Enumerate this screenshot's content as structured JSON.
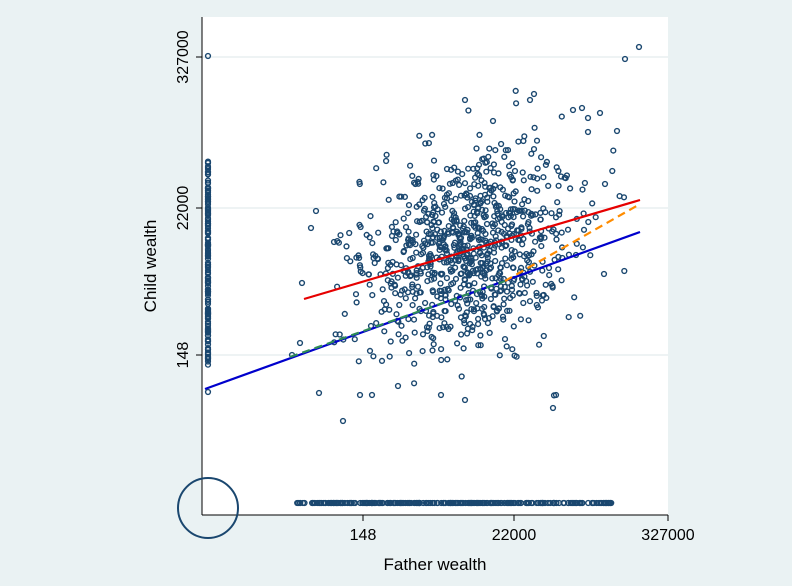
{
  "chart_data": {
    "type": "scatter",
    "title": "",
    "xlabel": "Father wealth",
    "ylabel": "Child wealth",
    "scale": "log-like (tick positions evenly spaced at 148, 22000, 327000)",
    "x_ticks": [
      148,
      22000,
      327000
    ],
    "y_ticks": [
      148,
      22000,
      327000
    ],
    "xlim": [
      0,
      327000
    ],
    "ylim": [
      0,
      327000
    ],
    "grid": "horizontal",
    "legend": "none",
    "marker": "hollow circle",
    "colors": {
      "page_background": "#eaf2f3",
      "plot_background": "#ffffff",
      "marker": "#1a476f",
      "grid": "#e4ecee",
      "fit_red": "#e60000",
      "fit_blue": "#0000cc",
      "fit_orange_dashed": "#ff8c00",
      "fit_green_dashed": "#2e8b57",
      "circle_annotation": "#1a476f"
    },
    "fit_lines": [
      {
        "style": "solid",
        "color": "red",
        "points": [
          [
            1100,
            2800
          ],
          [
            327000,
            60000
          ]
        ]
      },
      {
        "style": "solid",
        "color": "blue",
        "points": [
          [
            50,
            30
          ],
          [
            327000,
            22000
          ]
        ]
      },
      {
        "style": "dashed",
        "color": "orange",
        "points": [
          [
            8000,
            2400
          ],
          [
            327000,
            40000
          ]
        ]
      },
      {
        "style": "dashed",
        "color": "green",
        "points": [
          [
            700,
            200
          ],
          [
            8000,
            2400
          ]
        ]
      }
    ],
    "annotation": "circle around origin (zero wealth for both father and child)"
  }
}
